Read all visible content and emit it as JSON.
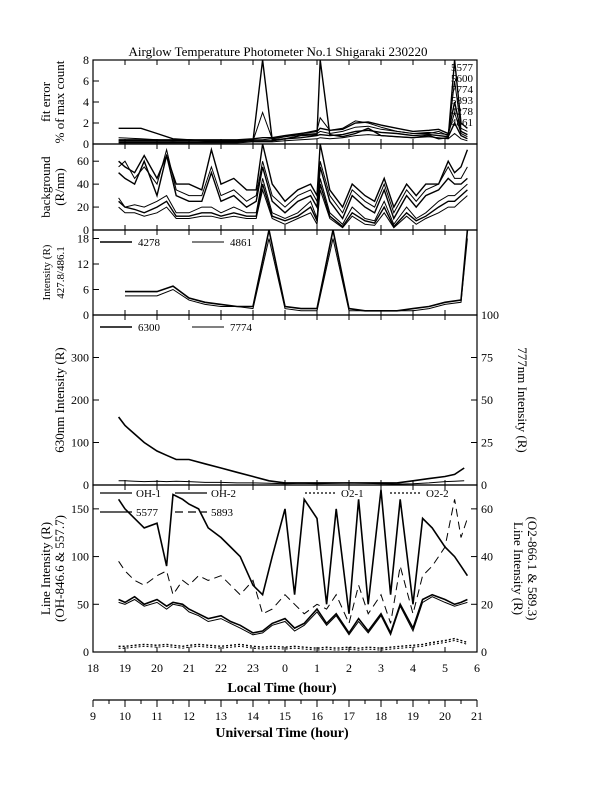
{
  "title": "Airglow Temperature Photometer No.1  Shigaraki  230220",
  "local_axis": {
    "label": "Local Time (hour)",
    "ticks": [
      "18",
      "19",
      "20",
      "21",
      "22",
      "23",
      "0",
      "1",
      "2",
      "3",
      "4",
      "5",
      "6"
    ]
  },
  "ut_axis": {
    "label": "Universal Time (hour)",
    "ticks": [
      "9",
      "10",
      "11",
      "12",
      "13",
      "14",
      "15",
      "16",
      "17",
      "18",
      "19",
      "20",
      "21"
    ]
  },
  "chart_data": [
    {
      "type": "line",
      "panel": "fit_error",
      "ylabel": [
        "fit error",
        "% of max count"
      ],
      "ylim": [
        0,
        8
      ],
      "yticks": [
        "0",
        "2",
        "4",
        "6",
        "8"
      ],
      "labels_right": [
        "5577",
        "5600",
        "7774",
        "5893",
        "4278",
        "4861"
      ],
      "x": [
        18.8,
        19.5,
        20.0,
        20.5,
        21.0,
        21.5,
        22.0,
        22.5,
        23.0,
        23.3,
        23.6,
        24.0,
        24.5,
        25.0,
        25.1,
        25.4,
        25.8,
        26.2,
        26.6,
        27.0,
        27.5,
        28.0,
        28.5,
        28.8,
        29.1,
        29.3,
        29.5,
        29.7
      ],
      "series": [
        {
          "values": [
            1.5,
            1.5,
            1.0,
            0.5,
            0.4,
            0.3,
            0.3,
            0.3,
            0.3,
            8.0,
            0.4,
            0.5,
            0.8,
            0.9,
            8.0,
            0.9,
            0.7,
            1.0,
            1.5,
            0.8,
            0.7,
            0.6,
            0.8,
            0.5,
            0.6,
            8.0,
            2.0,
            1.5
          ]
        },
        {
          "values": [
            0.6,
            0.5,
            0.4,
            0.3,
            0.4,
            0.3,
            0.3,
            0.3,
            0.3,
            3.0,
            0.5,
            0.7,
            1.0,
            1.3,
            2.5,
            1.3,
            1.5,
            2.2,
            2.0,
            1.6,
            1.2,
            1.0,
            1.0,
            1.2,
            0.8,
            6.0,
            1.5,
            1.2
          ]
        },
        {
          "values": [
            0.4,
            0.4,
            0.4,
            0.4,
            0.4,
            0.4,
            0.4,
            0.4,
            0.5,
            0.6,
            0.6,
            0.8,
            1.0,
            1.2,
            1.5,
            1.3,
            1.4,
            2.0,
            2.1,
            1.8,
            1.5,
            1.2,
            1.3,
            1.4,
            1.0,
            4.0,
            1.2,
            0.9
          ]
        },
        {
          "values": [
            0.3,
            0.3,
            0.3,
            0.3,
            0.3,
            0.3,
            0.3,
            0.3,
            0.4,
            0.4,
            0.5,
            0.7,
            0.9,
            1.0,
            1.2,
            1.0,
            1.2,
            1.6,
            1.7,
            1.4,
            1.2,
            1.0,
            1.1,
            1.0,
            0.9,
            3.0,
            1.0,
            0.7
          ]
        },
        {
          "values": [
            0.2,
            0.2,
            0.2,
            0.2,
            0.2,
            0.2,
            0.2,
            0.2,
            0.3,
            0.3,
            0.3,
            0.5,
            0.6,
            0.8,
            0.9,
            0.8,
            0.9,
            1.2,
            1.3,
            1.1,
            1.0,
            0.8,
            0.9,
            0.8,
            0.7,
            2.0,
            0.8,
            0.5
          ]
        },
        {
          "values": [
            0.1,
            0.1,
            0.1,
            0.1,
            0.1,
            0.1,
            0.1,
            0.1,
            0.2,
            0.2,
            0.2,
            0.3,
            0.4,
            0.5,
            0.6,
            0.5,
            0.6,
            0.8,
            0.9,
            0.8,
            0.7,
            0.6,
            0.7,
            0.6,
            0.5,
            1.0,
            0.5,
            0.3
          ]
        }
      ]
    },
    {
      "type": "line",
      "panel": "background",
      "ylabel": [
        "background",
        "(R/nm)"
      ],
      "ylim": [
        0,
        75
      ],
      "yticks": [
        "0",
        "20",
        "40",
        "60"
      ],
      "x": [
        18.8,
        19.0,
        19.3,
        19.6,
        20.0,
        20.3,
        20.6,
        21.0,
        21.4,
        21.7,
        22.0,
        22.4,
        22.8,
        23.1,
        23.3,
        23.6,
        24.0,
        24.4,
        24.8,
        25.0,
        25.1,
        25.4,
        25.8,
        26.1,
        26.5,
        26.8,
        27.1,
        27.4,
        27.8,
        28.1,
        28.4,
        28.8,
        29.1,
        29.3,
        29.5,
        29.7
      ],
      "series": [
        {
          "values": [
            60,
            55,
            50,
            65,
            45,
            65,
            40,
            40,
            35,
            70,
            40,
            45,
            35,
            35,
            75,
            40,
            25,
            35,
            40,
            30,
            75,
            35,
            20,
            40,
            30,
            25,
            45,
            20,
            40,
            30,
            40,
            40,
            60,
            50,
            55,
            70
          ]
        },
        {
          "values": [
            55,
            60,
            45,
            55,
            40,
            70,
            35,
            30,
            30,
            55,
            30,
            35,
            25,
            30,
            60,
            30,
            20,
            30,
            35,
            25,
            60,
            30,
            15,
            35,
            25,
            20,
            40,
            15,
            35,
            25,
            35,
            40,
            55,
            45,
            45,
            55
          ]
        },
        {
          "values": [
            50,
            45,
            40,
            60,
            30,
            65,
            30,
            25,
            25,
            50,
            25,
            30,
            20,
            25,
            55,
            25,
            15,
            25,
            30,
            20,
            55,
            25,
            10,
            30,
            20,
            15,
            35,
            10,
            30,
            20,
            30,
            35,
            45,
            40,
            40,
            45
          ]
        },
        {
          "values": [
            28,
            20,
            22,
            20,
            25,
            30,
            15,
            15,
            20,
            20,
            15,
            20,
            15,
            15,
            45,
            15,
            10,
            15,
            25,
            10,
            45,
            15,
            5,
            20,
            10,
            8,
            25,
            5,
            20,
            10,
            15,
            25,
            30,
            30,
            35,
            40
          ]
        },
        {
          "values": [
            25,
            20,
            18,
            15,
            20,
            25,
            12,
            12,
            15,
            15,
            12,
            15,
            12,
            12,
            40,
            12,
            8,
            12,
            20,
            8,
            40,
            12,
            3,
            15,
            8,
            6,
            20,
            3,
            15,
            8,
            12,
            20,
            25,
            25,
            30,
            35
          ]
        },
        {
          "values": [
            20,
            15,
            15,
            12,
            15,
            20,
            10,
            10,
            12,
            12,
            10,
            12,
            10,
            10,
            35,
            10,
            5,
            10,
            15,
            5,
            35,
            10,
            2,
            12,
            5,
            4,
            15,
            2,
            12,
            5,
            10,
            15,
            20,
            20,
            25,
            30
          ]
        }
      ]
    },
    {
      "type": "line",
      "panel": "intensity_4278_4861",
      "ylabel": [
        "Intensity (R)",
        "427.8/486.1"
      ],
      "ylim": [
        0,
        20
      ],
      "yticks": [
        "0",
        "6",
        "12",
        "18"
      ],
      "legend": [
        "4278",
        "4861"
      ],
      "x": [
        19.0,
        19.5,
        20.0,
        20.5,
        21.0,
        21.5,
        22.0,
        22.5,
        23.0,
        23.5,
        24.0,
        24.5,
        25.0,
        25.5,
        26.0,
        26.5,
        27.0,
        27.5,
        28.0,
        28.5,
        29.0,
        29.5,
        29.7
      ],
      "series": [
        {
          "name": "4278",
          "values": [
            5.5,
            5.5,
            5.5,
            6.8,
            4.0,
            3.0,
            2.5,
            2.0,
            2.0,
            20.0,
            2.0,
            1.5,
            1.5,
            20.0,
            1.5,
            1.0,
            1.0,
            1.0,
            1.5,
            2.0,
            3.0,
            3.5,
            20.0
          ]
        },
        {
          "name": "4861",
          "values": [
            4.5,
            4.5,
            4.5,
            6.0,
            3.5,
            2.5,
            2.0,
            2.0,
            1.5,
            18.0,
            1.5,
            1.0,
            1.0,
            18.0,
            1.0,
            1.0,
            1.0,
            1.0,
            1.0,
            1.5,
            2.5,
            3.0,
            18.0
          ]
        }
      ]
    },
    {
      "type": "line",
      "panel": "intensity_6300_7774",
      "ylabel": "630nm Intensity (R)",
      "ylabel_right": "777nm Intensity (R)",
      "ylim": [
        0,
        400
      ],
      "ylim_right": [
        0,
        100
      ],
      "yticks": [
        "0",
        "100",
        "200",
        "300"
      ],
      "yticks_right": [
        "0",
        "25",
        "50",
        "75",
        "100"
      ],
      "legend": [
        "6300",
        "7774"
      ],
      "x": [
        18.8,
        19.0,
        19.3,
        19.6,
        20.0,
        20.3,
        20.6,
        21.0,
        21.5,
        22.0,
        22.5,
        23.0,
        23.5,
        24.0,
        24.5,
        25.0,
        25.5,
        26.0,
        26.5,
        27.0,
        27.5,
        28.0,
        28.5,
        29.0,
        29.3,
        29.6
      ],
      "series": [
        {
          "name": "6300",
          "values": [
            160,
            140,
            120,
            100,
            80,
            70,
            60,
            60,
            50,
            40,
            30,
            20,
            10,
            5,
            5,
            5,
            5,
            5,
            5,
            5,
            5,
            10,
            15,
            20,
            25,
            40
          ]
        },
        {
          "name": "7774",
          "values": [
            10,
            10,
            9,
            8,
            9,
            8,
            9,
            8,
            6,
            6,
            5,
            5,
            4,
            3,
            4,
            3,
            4,
            5,
            4,
            3,
            2,
            3,
            5,
            8,
            9,
            10
          ]
        }
      ]
    },
    {
      "type": "line",
      "panel": "line_intensity",
      "ylabel": [
        "Line Intensity (R)",
        "(OH-846.6 & 557.7)"
      ],
      "ylabel_right": [
        "Line Intensity (R)",
        "(O2-866.1 & 589.3)"
      ],
      "ylim": [
        0,
        175
      ],
      "ylim_right": [
        0,
        70
      ],
      "yticks": [
        "0",
        "50",
        "100",
        "150"
      ],
      "yticks_right": [
        "0",
        "20",
        "40",
        "60"
      ],
      "legend": [
        "OH-1",
        "OH-2",
        "O2-1",
        "O2-2",
        "5577",
        "5893"
      ],
      "x": [
        18.8,
        19.0,
        19.3,
        19.6,
        20.0,
        20.3,
        20.5,
        20.8,
        21.0,
        21.3,
        21.6,
        22.0,
        22.3,
        22.6,
        23.0,
        23.3,
        23.6,
        24.0,
        24.3,
        24.6,
        25.0,
        25.3,
        25.6,
        26.0,
        26.3,
        26.6,
        27.0,
        27.3,
        27.6,
        28.0,
        28.3,
        28.6,
        29.0,
        29.3,
        29.5,
        29.7
      ],
      "series": [
        {
          "name": "5577",
          "values": [
            160,
            150,
            140,
            130,
            135,
            90,
            165,
            160,
            155,
            150,
            130,
            120,
            110,
            100,
            70,
            60,
            100,
            150,
            60,
            160,
            140,
            50,
            150,
            40,
            160,
            50,
            170,
            60,
            160,
            50,
            140,
            130,
            110,
            100,
            90,
            80
          ]
        },
        {
          "name": "5893",
          "values": [
            95,
            85,
            75,
            70,
            80,
            85,
            60,
            75,
            70,
            80,
            75,
            80,
            70,
            60,
            75,
            40,
            45,
            60,
            50,
            40,
            50,
            45,
            60,
            30,
            70,
            40,
            60,
            30,
            90,
            40,
            80,
            90,
            110,
            160,
            120,
            140
          ]
        },
        {
          "name": "OH-1",
          "values": [
            55,
            52,
            58,
            50,
            55,
            48,
            52,
            50,
            45,
            40,
            35,
            38,
            32,
            28,
            20,
            22,
            30,
            35,
            25,
            30,
            45,
            30,
            40,
            20,
            35,
            22,
            40,
            20,
            50,
            25,
            55,
            60,
            55,
            50,
            52,
            55
          ]
        },
        {
          "name": "OH-2",
          "values": [
            52,
            50,
            55,
            48,
            52,
            45,
            50,
            48,
            42,
            38,
            32,
            35,
            30,
            25,
            18,
            20,
            28,
            32,
            22,
            28,
            42,
            28,
            38,
            18,
            32,
            20,
            38,
            18,
            48,
            22,
            52,
            58,
            52,
            48,
            50,
            52
          ]
        },
        {
          "name": "O2-1",
          "values": [
            6,
            6,
            7,
            8,
            7,
            8,
            7,
            6,
            7,
            8,
            7,
            6,
            7,
            8,
            6,
            5,
            6,
            5,
            6,
            5,
            4,
            5,
            4,
            5,
            4,
            5,
            4,
            5,
            6,
            7,
            8,
            10,
            12,
            14,
            12,
            10
          ]
        },
        {
          "name": "O2-2",
          "values": [
            4,
            4,
            5,
            6,
            5,
            6,
            5,
            4,
            5,
            6,
            5,
            4,
            5,
            6,
            4,
            3,
            4,
            3,
            4,
            3,
            2,
            3,
            2,
            3,
            2,
            3,
            2,
            3,
            4,
            5,
            6,
            8,
            10,
            12,
            10,
            8
          ]
        }
      ]
    }
  ]
}
